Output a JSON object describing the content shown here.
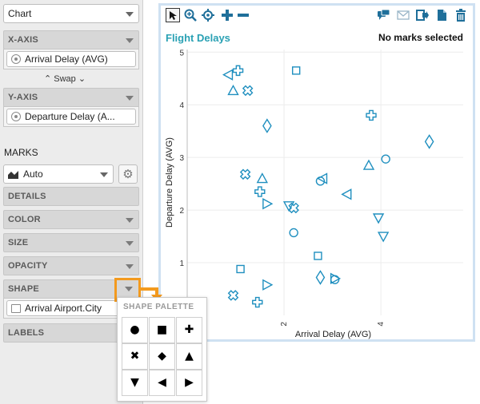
{
  "sidebar": {
    "chart_type": "Chart",
    "x_axis": {
      "header": "X-AXIS",
      "field": "Arrival Delay (AVG)"
    },
    "swap_label": "⌃ Swap ⌄",
    "y_axis": {
      "header": "Y-AXIS",
      "field": "Departure Delay (A..."
    },
    "marks_title": "MARKS",
    "mark_type": "Auto",
    "details": "DETAILS",
    "color": "COLOR",
    "size": "SIZE",
    "opacity": "OPACITY",
    "shape": {
      "header": "SHAPE",
      "field": "Arrival Airport.City"
    },
    "labels": "LABELS"
  },
  "chart": {
    "title": "Flight Delays",
    "status": "No marks selected",
    "toolbar_icons": [
      "select-icon",
      "zoom-icon",
      "pan-icon",
      "add-icon",
      "remove-icon",
      "comment-icon",
      "mail-icon",
      "export-icon",
      "copy-icon",
      "trash-icon"
    ]
  },
  "palette": {
    "title": "SHAPE PALETTE",
    "shapes": [
      "●",
      "■",
      "✚",
      "✖",
      "◆",
      "▲",
      "▼",
      "◀",
      "▶"
    ]
  },
  "colors": {
    "accent": "#1f8fbf",
    "title": "#2aa1b4",
    "highlight": "#f39a1e",
    "plot_border": "#cfe1f2"
  },
  "chart_data": {
    "type": "scatter",
    "xlabel": "Arrival Delay (AVG)",
    "ylabel": "Departure Delay (AVG)",
    "x_ticks": [
      2,
      4
    ],
    "y_ticks": [
      1,
      2,
      3,
      4,
      5
    ],
    "xlim": [
      0,
      5.7
    ],
    "ylim": [
      0,
      5.05
    ],
    "grid": true,
    "points": [
      {
        "x": 0.85,
        "y": 4.57,
        "shape": "triangle-left"
      },
      {
        "x": 1.05,
        "y": 4.65,
        "shape": "plus"
      },
      {
        "x": 0.95,
        "y": 4.27,
        "shape": "triangle-up"
      },
      {
        "x": 1.25,
        "y": 4.27,
        "shape": "x"
      },
      {
        "x": 2.25,
        "y": 4.65,
        "shape": "square"
      },
      {
        "x": 1.65,
        "y": 3.6,
        "shape": "diamond"
      },
      {
        "x": 1.2,
        "y": 2.68,
        "shape": "x"
      },
      {
        "x": 1.55,
        "y": 2.6,
        "shape": "triangle-up"
      },
      {
        "x": 1.5,
        "y": 2.35,
        "shape": "plus"
      },
      {
        "x": 1.65,
        "y": 2.12,
        "shape": "triangle-right"
      },
      {
        "x": 2.1,
        "y": 2.08,
        "shape": "triangle-down"
      },
      {
        "x": 2.2,
        "y": 2.04,
        "shape": "x"
      },
      {
        "x": 2.75,
        "y": 2.55,
        "shape": "circle"
      },
      {
        "x": 2.8,
        "y": 2.6,
        "shape": "triangle-left"
      },
      {
        "x": 3.3,
        "y": 2.3,
        "shape": "triangle-left"
      },
      {
        "x": 3.75,
        "y": 2.85,
        "shape": "triangle-up"
      },
      {
        "x": 3.8,
        "y": 3.8,
        "shape": "plus"
      },
      {
        "x": 4.1,
        "y": 2.97,
        "shape": "circle"
      },
      {
        "x": 5.0,
        "y": 3.3,
        "shape": "diamond"
      },
      {
        "x": 3.95,
        "y": 1.85,
        "shape": "triangle-down"
      },
      {
        "x": 4.05,
        "y": 1.5,
        "shape": "triangle-down"
      },
      {
        "x": 2.2,
        "y": 1.57,
        "shape": "circle"
      },
      {
        "x": 2.7,
        "y": 1.13,
        "shape": "square"
      },
      {
        "x": 1.1,
        "y": 0.88,
        "shape": "square"
      },
      {
        "x": 1.65,
        "y": 0.58,
        "shape": "triangle-right"
      },
      {
        "x": 2.75,
        "y": 0.72,
        "shape": "diamond"
      },
      {
        "x": 3.05,
        "y": 0.7,
        "shape": "triangle-right"
      },
      {
        "x": 3.05,
        "y": 0.68,
        "shape": "circle"
      },
      {
        "x": 0.95,
        "y": 0.38,
        "shape": "x"
      },
      {
        "x": 1.45,
        "y": 0.25,
        "shape": "plus"
      }
    ]
  }
}
